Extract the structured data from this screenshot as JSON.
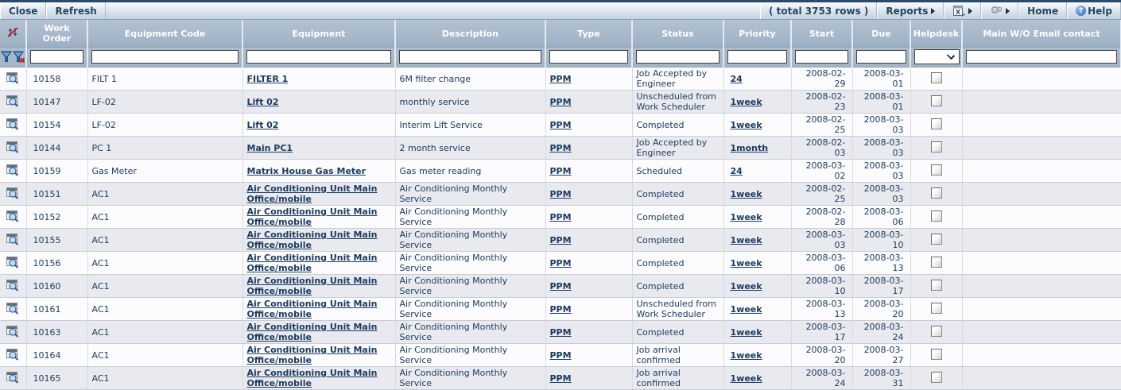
{
  "toolbar": {
    "close_label": "Close",
    "refresh_label": "Refresh",
    "total_rows_text": "( total 3753 rows )",
    "reports_label": "Reports",
    "home_label": "Home",
    "help_label": "Help",
    "help_icon_glyph": "?"
  },
  "icons": {
    "sort_clear": "sort-arrows-red-slash",
    "filter_apply": "blue-funnel",
    "filter_clear": "blue-funnel-red-x",
    "row_preview": "window-magnifier",
    "export": "excel-export-page",
    "tools": "double-gears",
    "help": "blue-question-circle",
    "menu_arrow": "▶",
    "select_chevron": "∨",
    "gear_glyph": "⚙"
  },
  "table": {
    "columns": {
      "wo": "Work Order",
      "code": "Equipment Code",
      "equipment": "Equipment",
      "description": "Description",
      "type": "Type",
      "status": "Status",
      "priority": "Priority",
      "start": "Start",
      "due": "Due",
      "helpdesk": "Helpdesk",
      "email": "Main W/O Email contact"
    },
    "filters": {
      "wo": "",
      "code": "",
      "equipment": "",
      "description": "",
      "type": "",
      "status": "",
      "priority": "",
      "start": "",
      "due": "",
      "helpdesk_selected": "",
      "email": ""
    },
    "rows": [
      {
        "wo": "10158",
        "code": "FILT 1",
        "equipment": "FILTER 1",
        "description": "6M filter change",
        "type": "PPM",
        "status": "Job Accepted by Engineer",
        "priority": "24",
        "start": "2008-02-29",
        "due": "2008-03-01",
        "helpdesk_checked": false,
        "email": ""
      },
      {
        "wo": "10147",
        "code": "LF-02",
        "equipment": "Lift 02",
        "description": "monthly service",
        "type": "PPM",
        "status": "Unscheduled from Work Scheduler",
        "priority": "1week",
        "start": "2008-02-23",
        "due": "2008-03-01",
        "helpdesk_checked": false,
        "email": ""
      },
      {
        "wo": "10154",
        "code": "LF-02",
        "equipment": "Lift 02",
        "description": "Interim Lift Service",
        "type": "PPM",
        "status": "Completed",
        "priority": "1week",
        "start": "2008-02-25",
        "due": "2008-03-03",
        "helpdesk_checked": false,
        "email": ""
      },
      {
        "wo": "10144",
        "code": "PC 1",
        "equipment": "Main PC1",
        "description": "2 month service",
        "type": "PPM",
        "status": "Job Accepted by Engineer",
        "priority": "1month",
        "start": "2008-02-03",
        "due": "2008-03-03",
        "helpdesk_checked": false,
        "email": ""
      },
      {
        "wo": "10159",
        "code": "Gas Meter",
        "equipment": "Matrix House Gas Meter",
        "description": "Gas meter reading",
        "type": "PPM",
        "status": "Scheduled",
        "priority": "24",
        "start": "2008-03-02",
        "due": "2008-03-03",
        "helpdesk_checked": false,
        "email": ""
      },
      {
        "wo": "10151",
        "code": "AC1",
        "equipment": "Air Conditioning Unit Main Office/mobile",
        "description": "Air Conditioning Monthly Service",
        "type": "PPM",
        "status": "Completed",
        "priority": "1week",
        "start": "2008-02-25",
        "due": "2008-03-03",
        "helpdesk_checked": false,
        "email": ""
      },
      {
        "wo": "10152",
        "code": "AC1",
        "equipment": "Air Conditioning Unit Main Office/mobile",
        "description": "Air Conditioning Monthly Service",
        "type": "PPM",
        "status": "Completed",
        "priority": "1week",
        "start": "2008-02-28",
        "due": "2008-03-06",
        "helpdesk_checked": false,
        "email": ""
      },
      {
        "wo": "10155",
        "code": "AC1",
        "equipment": "Air Conditioning Unit Main Office/mobile",
        "description": "Air Conditioning Monthly Service",
        "type": "PPM",
        "status": "Completed",
        "priority": "1week",
        "start": "2008-03-03",
        "due": "2008-03-10",
        "helpdesk_checked": false,
        "email": ""
      },
      {
        "wo": "10156",
        "code": "AC1",
        "equipment": "Air Conditioning Unit Main Office/mobile",
        "description": "Air Conditioning Monthly Service",
        "type": "PPM",
        "status": "Completed",
        "priority": "1week",
        "start": "2008-03-06",
        "due": "2008-03-13",
        "helpdesk_checked": false,
        "email": ""
      },
      {
        "wo": "10160",
        "code": "AC1",
        "equipment": "Air Conditioning Unit Main Office/mobile",
        "description": "Air Conditioning Monthly Service",
        "type": "PPM",
        "status": "Completed",
        "priority": "1week",
        "start": "2008-03-10",
        "due": "2008-03-17",
        "helpdesk_checked": false,
        "email": ""
      },
      {
        "wo": "10161",
        "code": "AC1",
        "equipment": "Air Conditioning Unit Main Office/mobile",
        "description": "Air Conditioning Monthly Service",
        "type": "PPM",
        "status": "Unscheduled from Work Scheduler",
        "priority": "1week",
        "start": "2008-03-13",
        "due": "2008-03-20",
        "helpdesk_checked": false,
        "email": ""
      },
      {
        "wo": "10163",
        "code": "AC1",
        "equipment": "Air Conditioning Unit Main Office/mobile",
        "description": "Air Conditioning Monthly Service",
        "type": "PPM",
        "status": "Completed",
        "priority": "1week",
        "start": "2008-03-17",
        "due": "2008-03-24",
        "helpdesk_checked": false,
        "email": ""
      },
      {
        "wo": "10164",
        "code": "AC1",
        "equipment": "Air Conditioning Unit Main Office/mobile",
        "description": "Air Conditioning Monthly Service",
        "type": "PPM",
        "status": "Job arrival confirmed",
        "priority": "1week",
        "start": "2008-03-20",
        "due": "2008-03-27",
        "helpdesk_checked": false,
        "email": ""
      },
      {
        "wo": "10165",
        "code": "AC1",
        "equipment": "Air Conditioning Unit Main Office/mobile",
        "description": "Air Conditioning Monthly Service",
        "type": "PPM",
        "status": "Job arrival confirmed",
        "priority": "1week",
        "start": "2008-03-24",
        "due": "2008-03-31",
        "helpdesk_checked": false,
        "email": ""
      }
    ]
  }
}
